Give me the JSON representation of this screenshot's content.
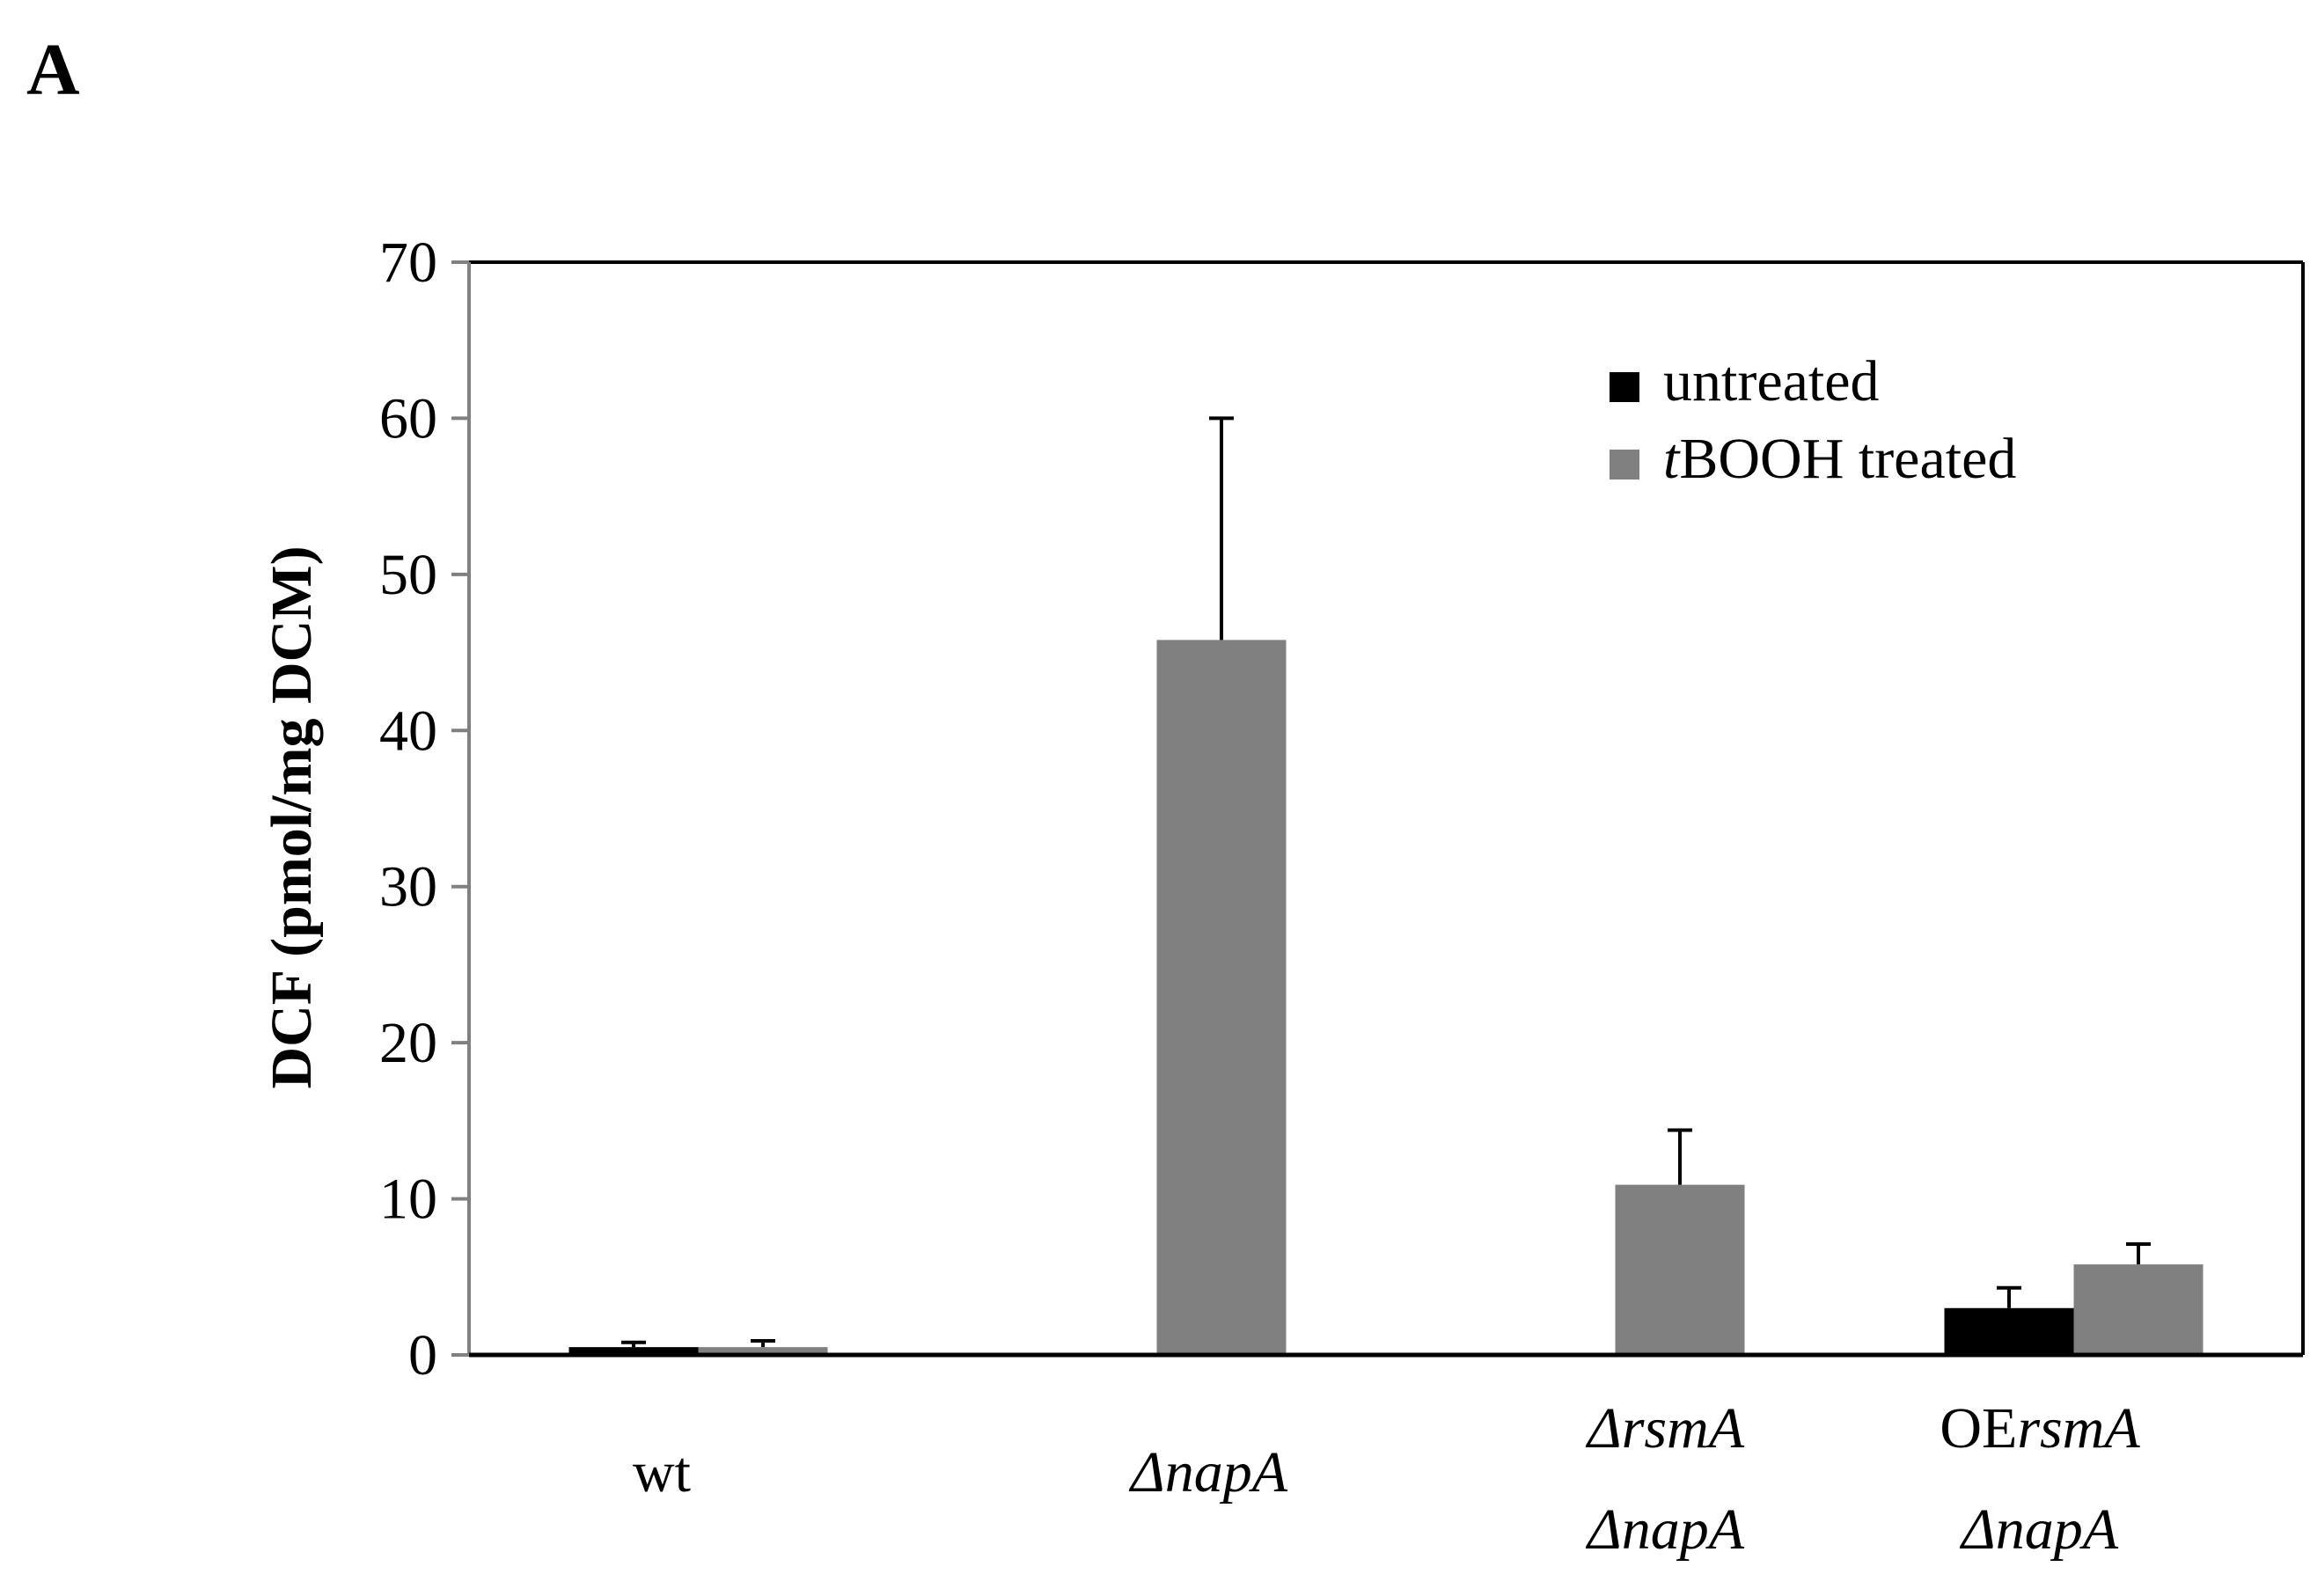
{
  "panel_label": "A",
  "chart_data": {
    "type": "bar",
    "title": "",
    "xlabel": "",
    "ylabel": "DCF (pmol/mg DCM)",
    "ylim": [
      0,
      70
    ],
    "yticks": [
      0,
      10,
      20,
      30,
      40,
      50,
      60,
      70
    ],
    "grid": false,
    "legend_position": "top-right",
    "categories": [
      {
        "lines": [
          [
            {
              "t": "wt",
              "i": false
            }
          ]
        ]
      },
      {
        "lines": [
          [
            {
              "t": "ΔnapA",
              "i": true
            }
          ]
        ]
      },
      {
        "lines": [
          [
            {
              "t": "ΔrsmA",
              "i": true
            }
          ],
          [
            {
              "t": "ΔnapA",
              "i": true
            }
          ]
        ]
      },
      {
        "lines": [
          [
            {
              "t": "OE",
              "i": false
            },
            {
              "t": "rsmA",
              "i": true
            }
          ],
          [
            {
              "t": "ΔnapA",
              "i": true
            }
          ]
        ]
      }
    ],
    "series": [
      {
        "name": "untreated",
        "name_parts": [
          {
            "t": "untreated",
            "i": false
          }
        ],
        "color": "#000000",
        "values": [
          0.5,
          0,
          0,
          3.0
        ],
        "errors": [
          0.3,
          0,
          0,
          1.3
        ]
      },
      {
        "name": "tBOOH treated",
        "name_parts": [
          {
            "t": "t",
            "i": true
          },
          {
            "t": "BOOH treated",
            "i": false
          }
        ],
        "color": "#808080",
        "values": [
          0.5,
          45.8,
          10.9,
          5.8
        ],
        "errors": [
          0.4,
          14.2,
          3.5,
          1.3
        ]
      }
    ]
  }
}
